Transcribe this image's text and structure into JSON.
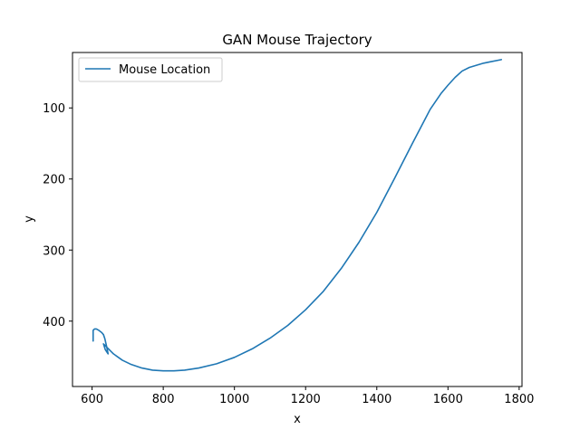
{
  "chart_data": {
    "type": "line",
    "title": "GAN Mouse Trajectory",
    "xlabel": "x",
    "ylabel": "y",
    "xlim": [
      545,
      1808
    ],
    "ylim": [
      492,
      22
    ],
    "y_inverted": true,
    "xticks": [
      600,
      800,
      1000,
      1200,
      1400,
      1600,
      1800
    ],
    "yticks": [
      100,
      200,
      300,
      400
    ],
    "legend_position": "upper left",
    "grid": false,
    "colors": {
      "series": "#1f77b4"
    },
    "series": [
      {
        "name": "Mouse Location",
        "x": [
          603,
          603,
          607,
          612,
          619,
          627,
          632,
          636,
          641,
          643,
          645,
          637,
          632,
          640,
          660,
          685,
          710,
          740,
          770,
          800,
          830,
          860,
          900,
          950,
          1000,
          1050,
          1100,
          1150,
          1200,
          1250,
          1300,
          1350,
          1400,
          1450,
          1500,
          1550,
          1580,
          1600,
          1620,
          1640,
          1660,
          1680,
          1700,
          1720,
          1750
        ],
        "y": [
          428,
          413,
          411,
          411,
          413,
          416,
          419,
          425,
          436,
          441,
          446,
          440,
          432,
          436,
          446,
          455,
          461,
          466,
          469,
          470,
          470,
          469,
          466,
          460,
          451,
          439,
          424,
          406,
          384,
          358,
          326,
          289,
          247,
          199,
          150,
          102,
          80,
          68,
          57,
          48,
          43,
          40,
          37,
          35,
          32
        ]
      }
    ]
  }
}
